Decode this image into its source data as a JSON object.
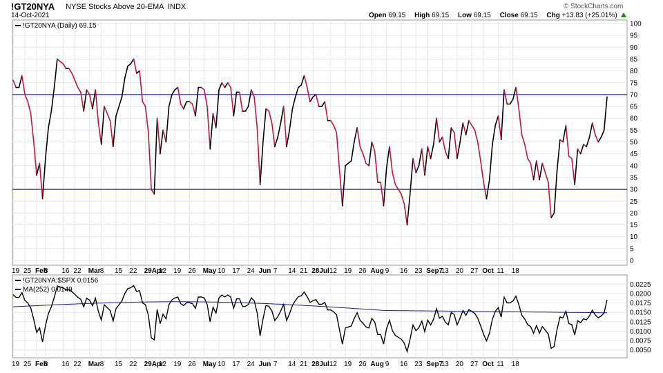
{
  "header": {
    "symbol": "!GT20NYA",
    "description": "NYSE Stocks Above 20-EMA",
    "exchange": "INDX",
    "date": "14-Oct-2021",
    "brand": "© StockCharts.com",
    "open_label": "Open",
    "open": "69.15",
    "high_label": "High",
    "high": "69.15",
    "low_label": "Low",
    "low": "69.15",
    "close_label": "Close",
    "close": "69.15",
    "chg_label": "Chg",
    "chg": "+13.83 (+25.01%)"
  },
  "colors": {
    "up": "#000000",
    "down": "#c8143c",
    "line": "#00007a",
    "ma": "#1a1a8c",
    "grid": "#e6e6e6"
  },
  "chart_data": [
    {
      "type": "line",
      "legend": "!GT20NYA (Daily) 69.15",
      "ylim": [
        0,
        100
      ],
      "yticks": [
        0,
        5,
        10,
        15,
        20,
        25,
        30,
        35,
        40,
        45,
        50,
        55,
        60,
        65,
        70,
        75,
        80,
        85,
        90,
        95,
        100
      ],
      "hlines": [
        30,
        70
      ],
      "x_ticks": [
        "19",
        "25",
        "Feb",
        "8",
        "16",
        "22",
        "Mar",
        "8",
        "15",
        "22",
        "29Apr",
        "12",
        "19",
        "26",
        "May",
        "10",
        "17",
        "24",
        "Jun",
        "7",
        "14",
        "21",
        "28Jul",
        "12",
        "19",
        "26",
        "Aug",
        "9",
        "16",
        "23",
        "Sep7",
        "13",
        "20",
        "27",
        "Oct",
        "11",
        "18"
      ],
      "values": [
        76,
        73,
        73,
        78,
        70,
        67,
        62,
        50,
        36,
        41,
        26,
        43,
        56,
        63,
        73,
        85,
        84,
        83,
        81,
        81,
        79,
        76,
        73,
        71,
        63,
        72,
        70,
        64,
        72,
        58,
        49,
        65,
        62,
        59,
        48,
        61,
        65,
        69,
        77,
        82,
        83,
        85,
        79,
        80,
        67,
        65,
        54,
        30,
        28,
        60,
        45,
        55,
        50,
        65,
        70,
        72,
        73,
        66,
        64,
        67,
        67,
        66,
        61,
        73,
        73,
        72,
        65,
        47,
        62,
        56,
        72,
        75,
        73,
        75,
        73,
        61,
        71,
        71,
        63,
        63,
        65,
        72,
        69,
        56,
        32,
        50,
        64,
        63,
        58,
        48,
        52,
        58,
        65,
        48,
        55,
        64,
        69,
        73,
        74,
        78,
        73,
        67,
        69,
        70,
        65,
        65,
        67,
        59,
        59,
        57,
        54,
        38,
        23,
        40,
        41,
        42,
        50,
        56,
        48,
        45,
        41,
        40,
        50,
        46,
        33,
        33,
        23,
        39,
        48,
        37,
        32,
        30,
        28,
        24,
        15,
        28,
        43,
        37,
        40,
        47,
        36,
        48,
        43,
        49,
        60,
        50,
        52,
        46,
        43,
        56,
        54,
        43,
        50,
        58,
        53,
        59,
        57,
        55,
        50,
        42,
        33,
        26,
        34,
        49,
        57,
        61,
        51,
        72,
        66,
        66,
        68,
        73,
        64,
        53,
        49,
        43,
        41,
        34,
        42,
        34,
        41,
        37,
        33,
        18,
        20,
        38,
        51,
        50,
        57,
        44,
        43,
        32,
        47,
        45,
        49,
        48,
        52,
        58,
        53,
        50,
        52,
        55,
        69
      ],
      "x_tick_index": [
        0,
        4,
        8,
        11,
        17,
        21,
        26,
        30,
        35,
        40,
        45,
        50,
        55,
        60,
        65,
        70,
        75,
        80,
        84,
        89,
        94,
        98,
        102,
        108,
        113,
        118,
        122,
        127,
        132,
        137,
        141,
        146,
        151,
        156,
        160,
        165,
        170
      ]
    },
    {
      "type": "line",
      "legend": "!GT20NYA:$SPX 0.0156",
      "ma_legend": "MA(252) 0.0149",
      "ylim": [
        0.004,
        0.0235
      ],
      "yticks": [
        0.005,
        0.0075,
        0.01,
        0.0125,
        0.015,
        0.0175,
        0.02,
        0.0225
      ],
      "ytick_labels": [
        "0.0050",
        "0.0075",
        "0.0100",
        "0.0125",
        "0.0150",
        "0.0175",
        "0.0200",
        "0.0225"
      ]
    }
  ]
}
